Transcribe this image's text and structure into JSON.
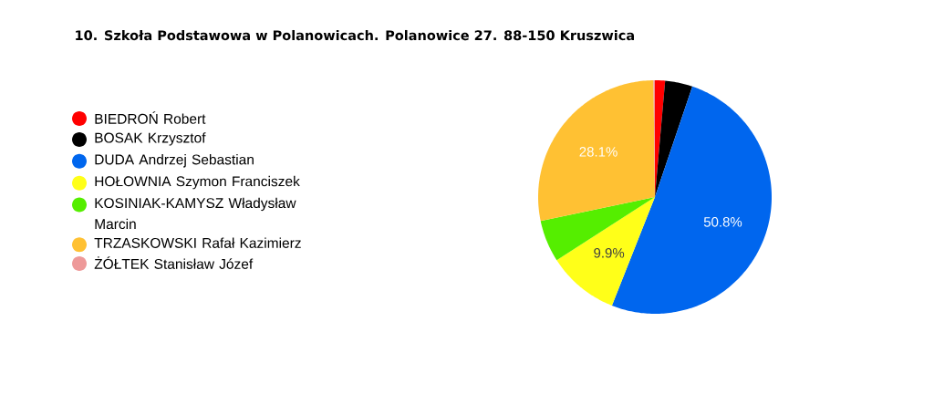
{
  "chart_data": {
    "type": "pie",
    "title": "10. Szkoła Podstawowa w Polanowicach. Polanowice 27. 88-150 Kruszwica",
    "categories": [
      "BIEDROŃ Robert",
      "BOSAK Krzysztof",
      "DUDA Andrzej Sebastian",
      "HOŁOWNIA Szymon Franciszek",
      "KOSINIAK-KAMYSZ Władysław Marcin",
      "TRZASKOWSKI Rafał Kazimierz",
      "ŻÓŁTEK Stanisław Józef"
    ],
    "values": [
      1.4,
      3.8,
      50.8,
      9.9,
      5.8,
      28.1,
      0.2
    ],
    "colors": [
      "#ff0000",
      "#000000",
      "#0066ee",
      "#ffff19",
      "#55ee00",
      "#ffc133",
      "#ee9999"
    ],
    "value_labels": [
      null,
      null,
      "50.8%",
      "9.9%",
      null,
      "28.1%",
      null
    ],
    "legend": "left"
  }
}
